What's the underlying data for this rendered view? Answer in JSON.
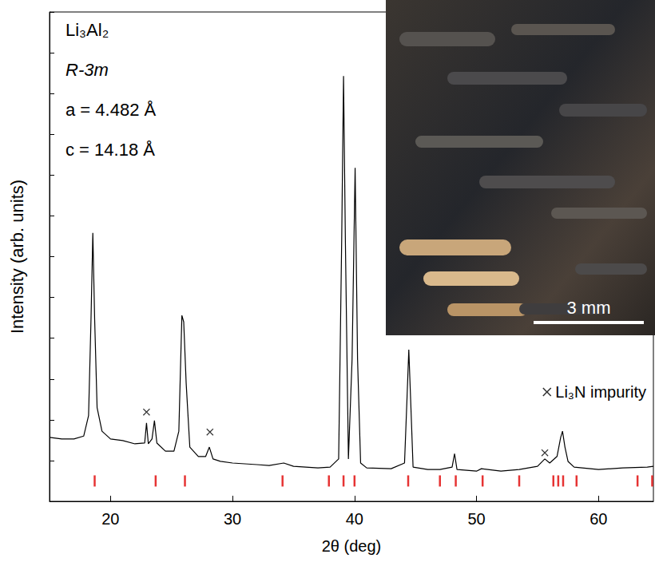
{
  "chart_data": {
    "type": "line",
    "x_label": "2θ (deg)",
    "y_label": "Intensity (arb. units)",
    "xlim": [
      15,
      64.5
    ],
    "xticks": [
      20,
      30,
      40,
      50,
      60
    ],
    "ylim": [
      0,
      12
    ],
    "yticks": [
      0,
      1,
      2,
      3,
      4,
      5,
      6,
      7,
      8,
      9,
      10,
      11,
      12
    ],
    "tick_labels": "x",
    "legend": "right",
    "annotations": [
      "Li₃Al₂",
      "R-3m",
      "a = 4.482 Å",
      "c = 14.18 Å"
    ],
    "inset": {
      "scale_bar": "3 mm"
    },
    "series": [
      {
        "color": "#000000",
        "x": [
          15.0,
          16.0,
          17.0,
          17.8,
          18.2,
          18.4,
          18.55,
          18.7,
          18.9,
          19.3,
          20.0,
          21.0,
          22.0,
          22.8,
          22.95,
          23.1,
          23.4,
          23.6,
          23.8,
          24.5,
          25.2,
          25.6,
          25.85,
          26.0,
          26.2,
          26.5,
          27.2,
          27.8,
          28.1,
          28.4,
          29.0,
          30.0,
          32.0,
          33.0,
          34.2,
          35.0,
          37.0,
          38.0,
          38.7,
          38.95,
          39.1,
          39.25,
          39.5,
          39.8,
          40.05,
          40.25,
          40.5,
          41.0,
          43.0,
          44.1,
          44.3,
          44.45,
          44.6,
          44.8,
          46.0,
          47.0,
          48.0,
          48.2,
          48.4,
          50.0,
          50.4,
          52.0,
          53.5,
          55.0,
          55.6,
          56.0,
          56.6,
          56.9,
          57.05,
          57.25,
          57.5,
          58.0,
          60.0,
          62.0,
          64.0,
          64.5
        ],
        "values": [
          1.57,
          1.53,
          1.53,
          1.6,
          2.1,
          4.46,
          6.58,
          4.46,
          2.3,
          1.72,
          1.53,
          1.49,
          1.41,
          1.43,
          1.92,
          1.41,
          1.53,
          1.98,
          1.43,
          1.23,
          1.23,
          1.72,
          4.56,
          4.4,
          2.9,
          1.33,
          1.1,
          1.1,
          1.33,
          1.04,
          0.98,
          0.94,
          0.9,
          0.88,
          0.94,
          0.86,
          0.82,
          0.84,
          1.04,
          6.42,
          10.43,
          6.42,
          1.04,
          3.48,
          8.18,
          3.48,
          0.94,
          0.82,
          0.8,
          0.94,
          2.5,
          3.72,
          2.5,
          0.84,
          0.78,
          0.78,
          0.84,
          1.17,
          0.78,
          0.74,
          0.8,
          0.74,
          0.78,
          0.86,
          1.04,
          0.94,
          1.1,
          1.57,
          1.72,
          1.33,
          0.98,
          0.84,
          0.78,
          0.82,
          0.84,
          0.86
        ]
      },
      {
        "name": "Li₃N impurity",
        "type": "scatter",
        "marker": "x",
        "color": "#000000",
        "x": [
          22.95,
          28.15,
          55.6
        ],
        "values": [
          2.19,
          1.7,
          1.19
        ]
      },
      {
        "type": "scatter",
        "marker": "vline",
        "color": "#e00000",
        "x": [
          18.7,
          23.7,
          26.1,
          34.1,
          37.9,
          39.1,
          40.0,
          44.4,
          47.0,
          48.3,
          50.5,
          53.5,
          56.3,
          56.7,
          57.1,
          58.2,
          63.2,
          64.4
        ],
        "values": [
          0.5,
          0.5,
          0.5,
          0.5,
          0.5,
          0.5,
          0.5,
          0.5,
          0.5,
          0.5,
          0.5,
          0.5,
          0.5,
          0.5,
          0.5,
          0.5,
          0.5,
          0.5
        ]
      }
    ]
  }
}
